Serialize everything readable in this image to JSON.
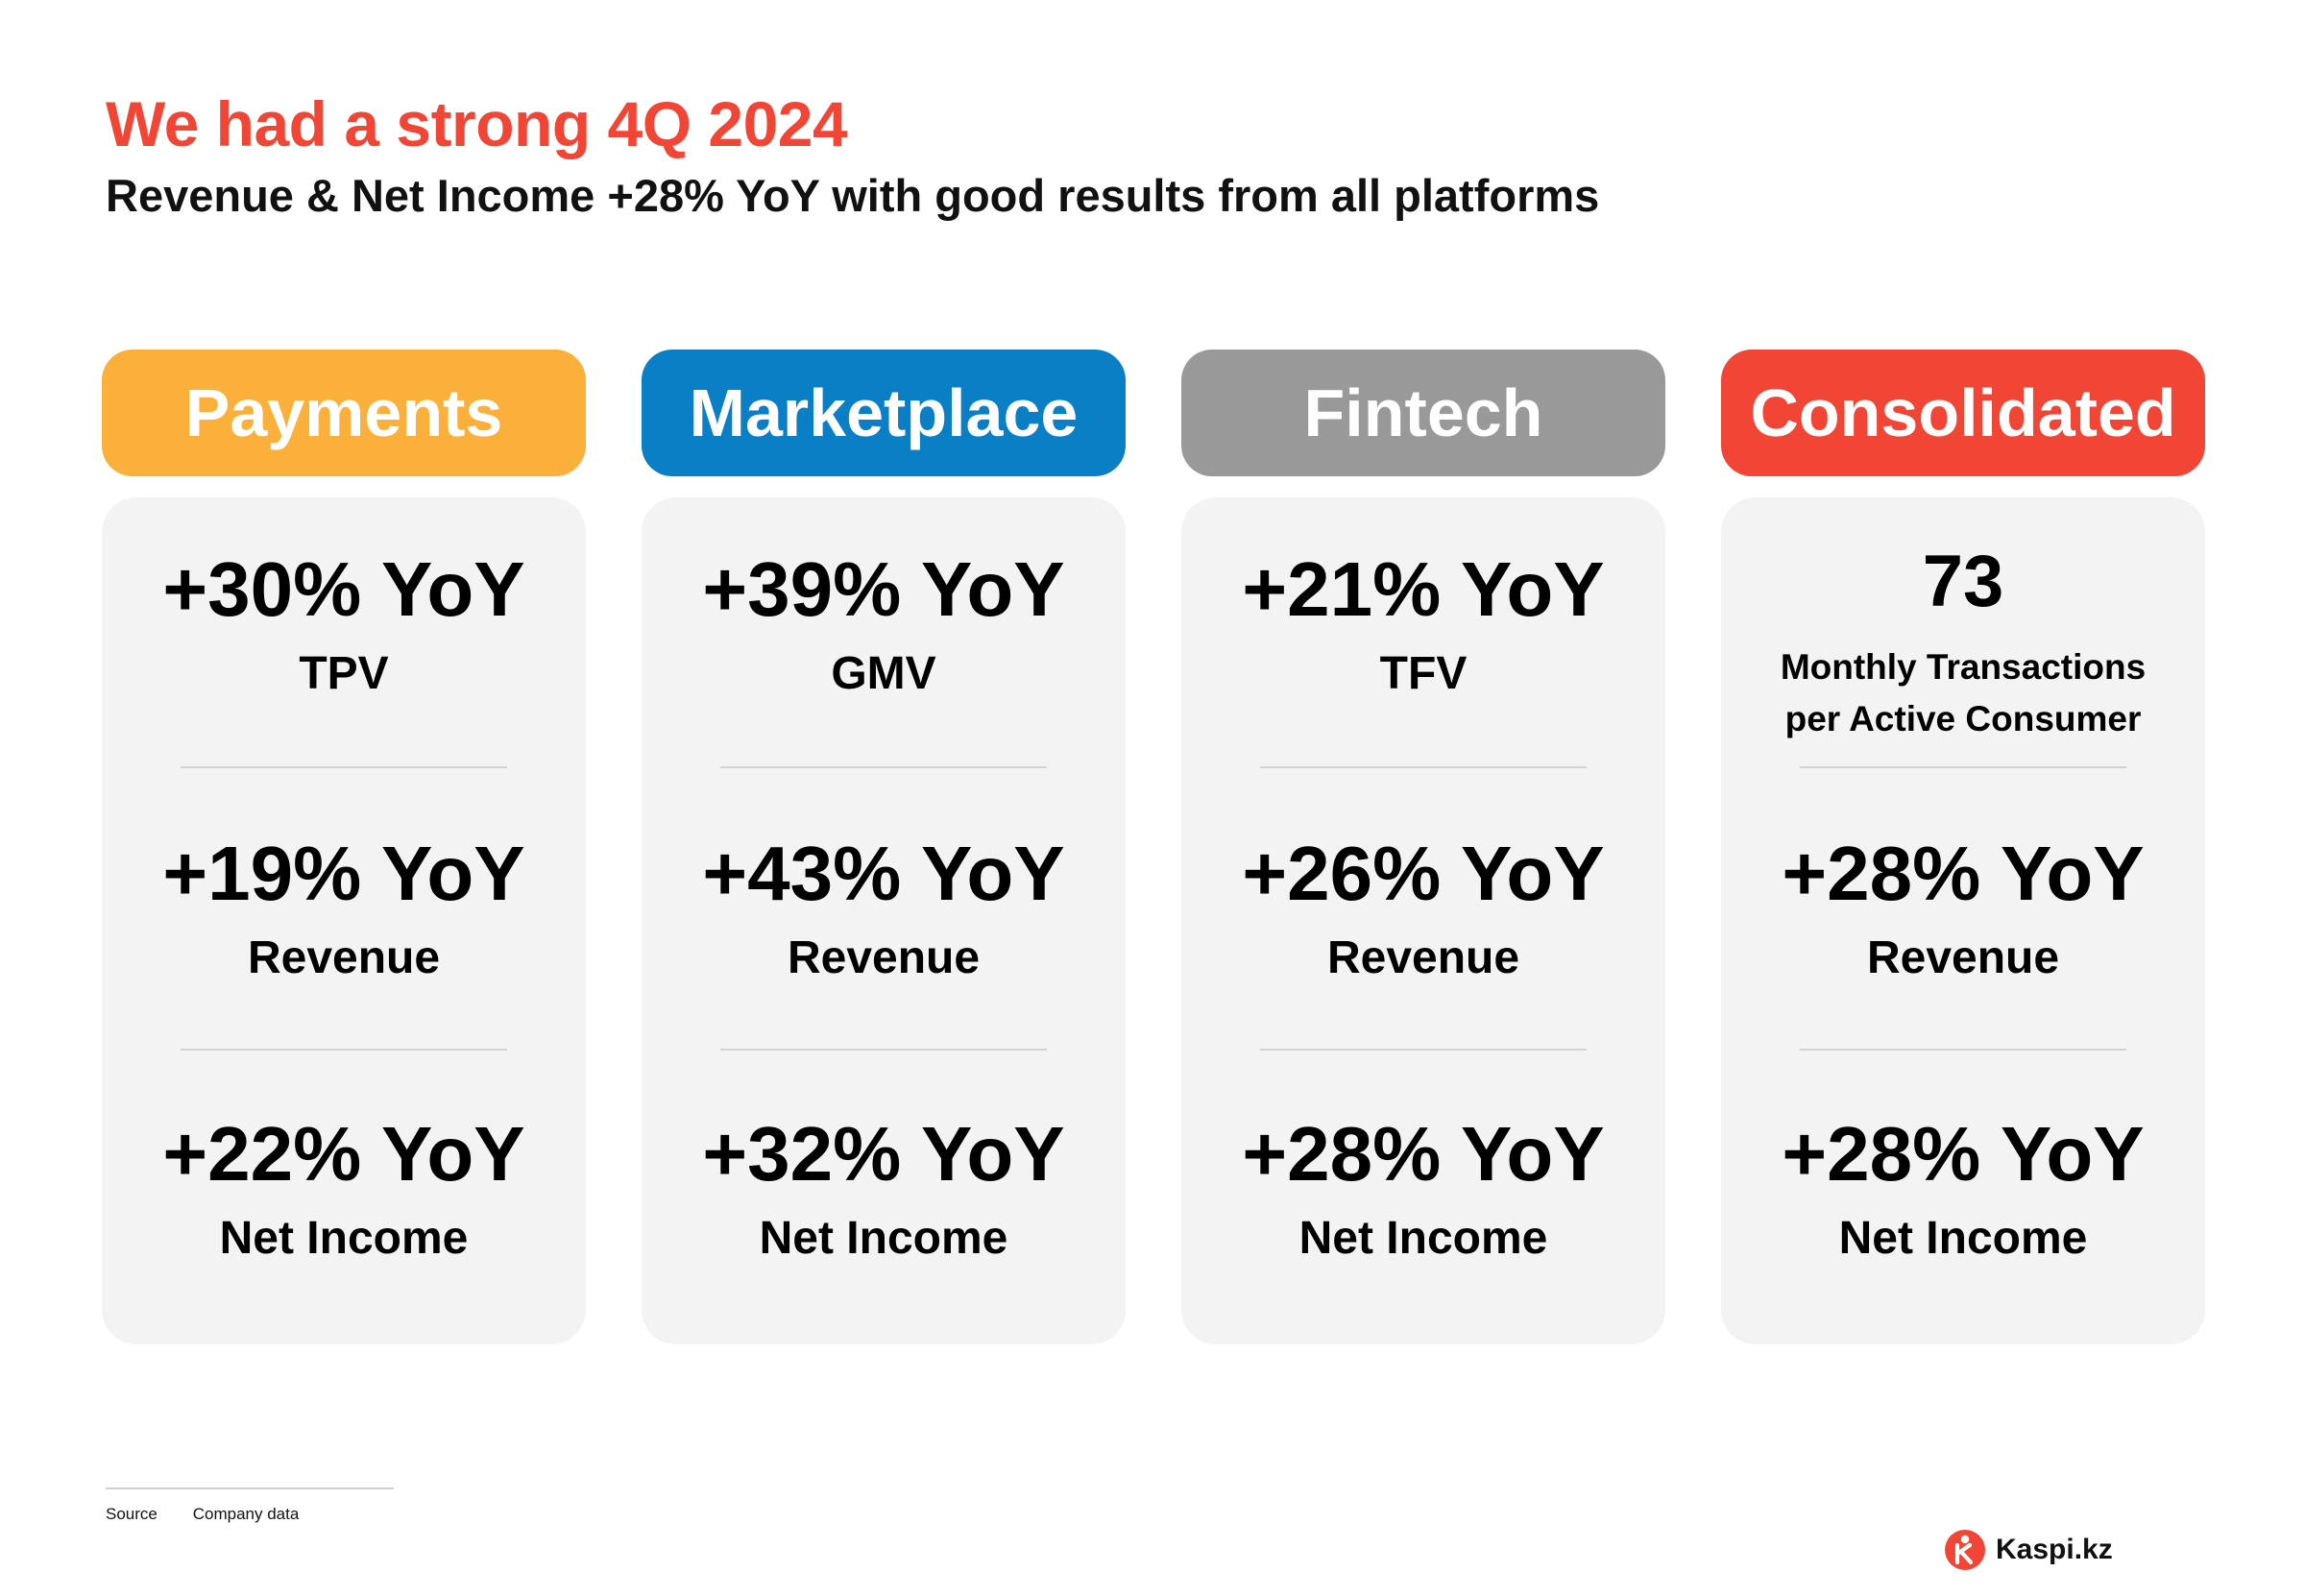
{
  "header": {
    "title": "We had a strong 4Q 2024",
    "subtitle": "Revenue & Net Income +28% YoY with good results from all platforms"
  },
  "columns": [
    {
      "name": "Payments",
      "color": "#fbb03b",
      "metrics": [
        {
          "value": "+30% YoY",
          "label": "TPV"
        },
        {
          "value": "+19% YoY",
          "label": "Revenue"
        },
        {
          "value": "+22% YoY",
          "label": "Net Income"
        }
      ]
    },
    {
      "name": "Marketplace",
      "color": "#0a7fc5",
      "metrics": [
        {
          "value": "+39% YoY",
          "label": "GMV"
        },
        {
          "value": "+43% YoY",
          "label": "Revenue"
        },
        {
          "value": "+32% YoY",
          "label": "Net Income"
        }
      ]
    },
    {
      "name": "Fintech",
      "color": "#999999",
      "metrics": [
        {
          "value": "+21% YoY",
          "label": "TFV"
        },
        {
          "value": "+26% YoY",
          "label": "Revenue"
        },
        {
          "value": "+28% YoY",
          "label": "Net Income"
        }
      ]
    },
    {
      "name": "Consolidated",
      "color": "#f14635",
      "metrics": [
        {
          "value": "73",
          "label_line1": "Monthly Transactions",
          "label_line2": "per Active Consumer"
        },
        {
          "value": "+28% YoY",
          "label": "Revenue"
        },
        {
          "value": "+28% YoY",
          "label": "Net Income"
        }
      ]
    }
  ],
  "footer": {
    "source_label": "Source",
    "source_text": "Company data",
    "logo_text": "Kaspi.kz",
    "logo_icon": "kaspi-logo-icon"
  }
}
